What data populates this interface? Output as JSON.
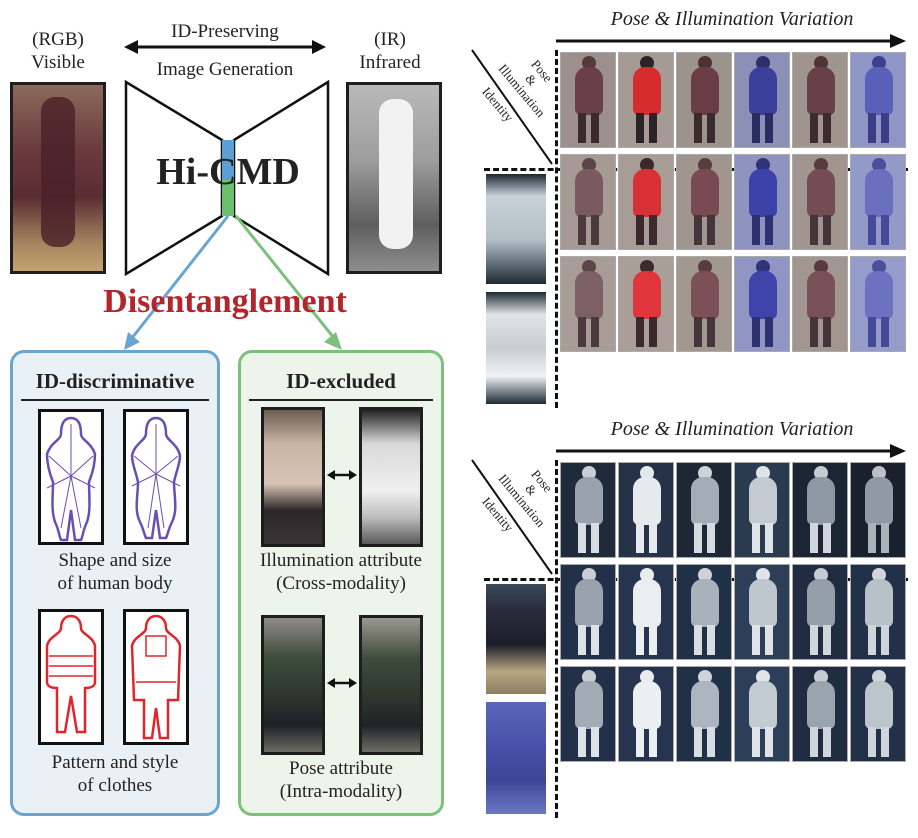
{
  "left": {
    "rgb_label_line1": "(RGB)",
    "rgb_label_line2": "Visible",
    "ir_label_line1": "(IR)",
    "ir_label_line2": "Infrared",
    "top_arrow_line1": "ID-Preserving",
    "top_arrow_line2": "Image Generation",
    "model_name": "Hi-CMD",
    "disentanglement": "Disentanglement"
  },
  "panels": {
    "id_discriminative": {
      "title": "ID-discriminative",
      "caption1_line1": "Shape and size",
      "caption1_line2": "of human body",
      "caption2_line1": "Pattern and style",
      "caption2_line2": "of clothes"
    },
    "id_excluded": {
      "title": "ID-excluded",
      "caption1_line1": "Illumination attribute",
      "caption1_line2": "(Cross-modality)",
      "caption2_line1": "Pose attribute",
      "caption2_line2": "(Intra-modality)"
    }
  },
  "right": {
    "top_title": "Pose & Illumination Variation",
    "bottom_title": "Pose & Illumination Variation",
    "corner_label_line1": "Pose",
    "corner_label_line2": "&",
    "corner_label_line3": "Illumination",
    "corner_label_line4": "Identity"
  },
  "colors": {
    "disentanglement_red": "#b3242b",
    "blue_panel_border": "#6aa5cf",
    "blue_panel_fill": "#eaf1f6",
    "green_panel_border": "#7cc07c",
    "green_panel_fill": "#edf4ea",
    "bottleneck_blue": "#5aa0d6",
    "bottleneck_green": "#6cc06c"
  }
}
